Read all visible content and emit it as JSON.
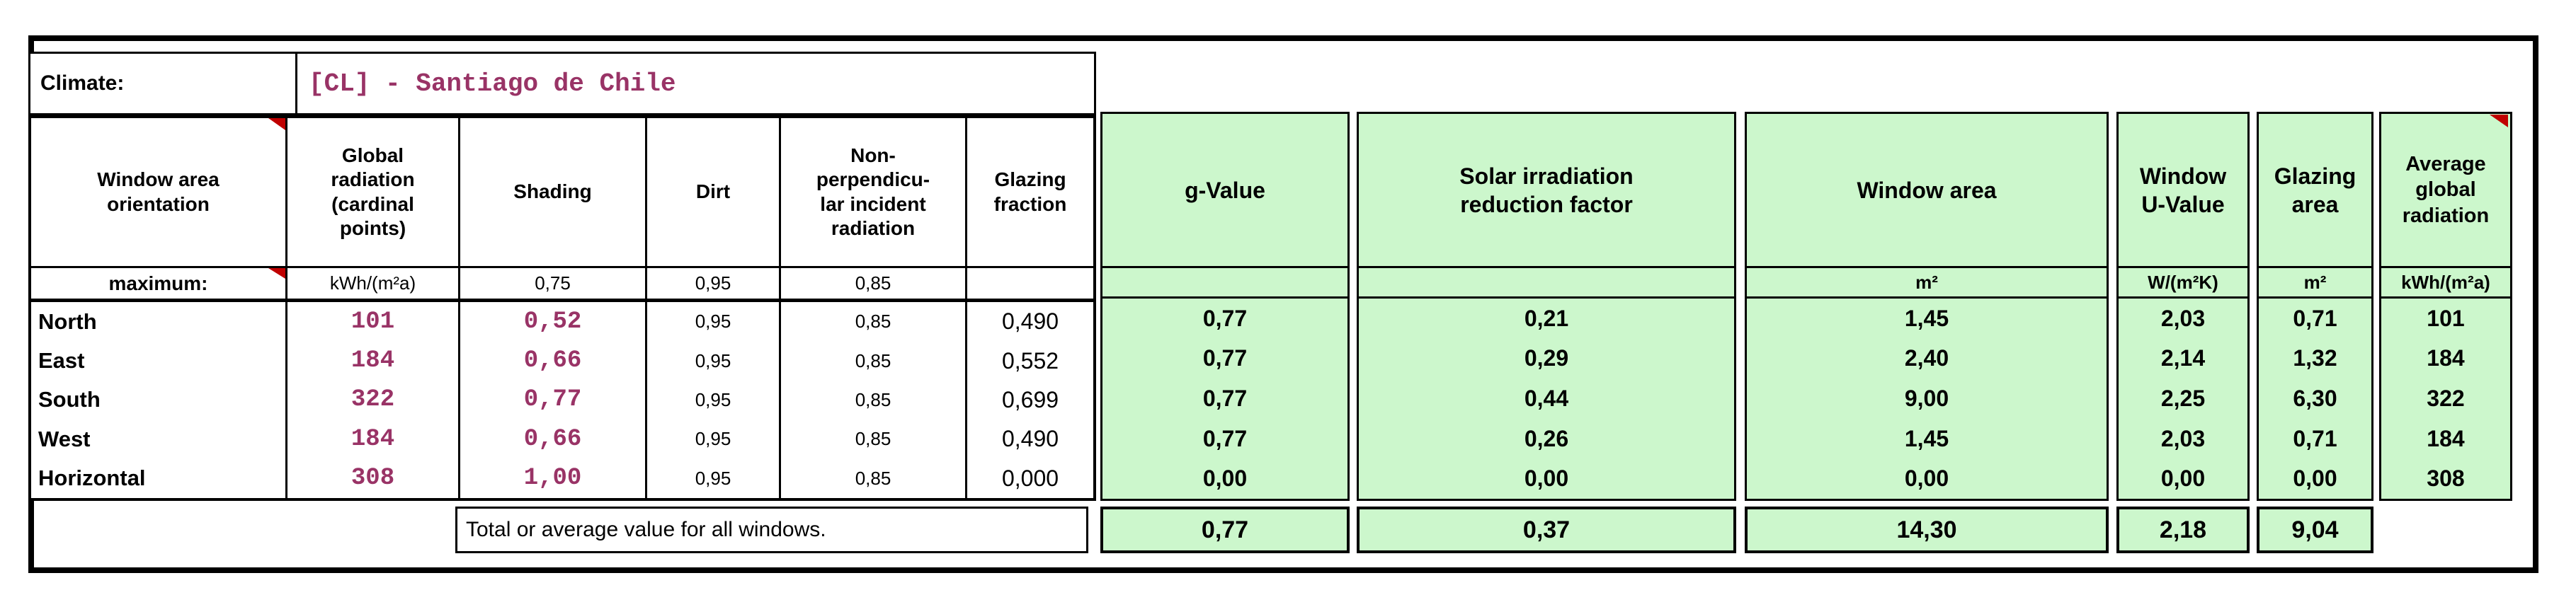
{
  "climate": {
    "label": "Climate:",
    "value": "[CL] - Santiago de Chile"
  },
  "left_table": {
    "header": {
      "orientation": "Window area\norientation",
      "global_radiation": "Global\nradiation\n(cardinal\npoints)",
      "shading": "Shading",
      "dirt": "Dirt",
      "non_perpendicular": "Non-\nperpendicu-\nlar incident\nradiation",
      "glazing_fraction": "Glazing\nfraction"
    },
    "maximum_row": {
      "label": "maximum:",
      "global_radiation_unit": "kWh/(m²a)",
      "shading_max": "0,75",
      "dirt_max": "0,95",
      "non_perpendicular_max": "0,85"
    },
    "rows": [
      {
        "orientation": "North",
        "global_radiation": "101",
        "shading": "0,52",
        "dirt": "0,95",
        "non_perpendicular": "0,85",
        "glazing_fraction": "0,490"
      },
      {
        "orientation": "East",
        "global_radiation": "184",
        "shading": "0,66",
        "dirt": "0,95",
        "non_perpendicular": "0,85",
        "glazing_fraction": "0,552"
      },
      {
        "orientation": "South",
        "global_radiation": "322",
        "shading": "0,77",
        "dirt": "0,95",
        "non_perpendicular": "0,85",
        "glazing_fraction": "0,699"
      },
      {
        "orientation": "West",
        "global_radiation": "184",
        "shading": "0,66",
        "dirt": "0,95",
        "non_perpendicular": "0,85",
        "glazing_fraction": "0,490"
      },
      {
        "orientation": "Horizontal",
        "global_radiation": "308",
        "shading": "1,00",
        "dirt": "0,95",
        "non_perpendicular": "0,85",
        "glazing_fraction": "0,000"
      }
    ]
  },
  "results_table": {
    "g_value": {
      "header": "g-Value",
      "unit": "",
      "values": [
        "0,77",
        "0,77",
        "0,77",
        "0,77",
        "0,00"
      ],
      "total": "0,77"
    },
    "solar_reduction": {
      "header": "Solar irradiation\nreduction factor",
      "unit": "",
      "values": [
        "0,21",
        "0,29",
        "0,44",
        "0,26",
        "0,00"
      ],
      "total": "0,37"
    },
    "window_area": {
      "header": "Window area",
      "unit": "m²",
      "values": [
        "1,45",
        "2,40",
        "9,00",
        "1,45",
        "0,00"
      ],
      "total": "14,30"
    },
    "window_u_value": {
      "header": "Window\nU-Value",
      "unit": "W/(m²K)",
      "values": [
        "2,03",
        "2,14",
        "2,25",
        "2,03",
        "0,00"
      ],
      "total": "2,18"
    },
    "glazing_area": {
      "header": "Glazing\narea",
      "unit": "m²",
      "values": [
        "0,71",
        "1,32",
        "6,30",
        "0,71",
        "0,00"
      ],
      "total": "9,04"
    },
    "avg_global_radiation": {
      "header": "Average\nglobal\nradiation",
      "unit": "kWh/(m²a)",
      "values": [
        "101",
        "184",
        "322",
        "184",
        "308"
      ]
    }
  },
  "total_row_label": "Total or average value for all windows.",
  "colors": {
    "result_green": "#ccf7cc",
    "input_magenta": "#993366",
    "comment_marker_red": "#c00000"
  }
}
